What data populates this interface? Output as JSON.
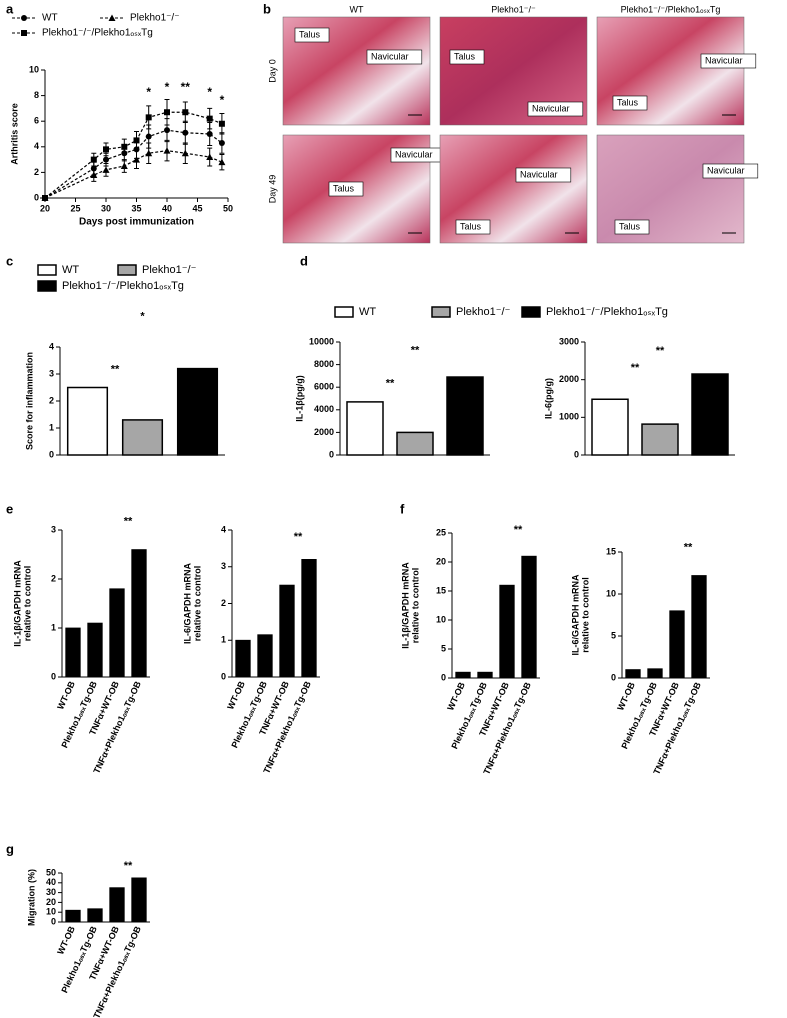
{
  "panel_labels": [
    "a",
    "b",
    "c",
    "d",
    "e",
    "f",
    "g"
  ],
  "histology": {
    "columns": [
      "WT",
      "Plekho1⁻/⁻",
      "Plekho1⁻/⁻/Plekho1ₒₛₓTg"
    ],
    "rows": [
      "Day 0",
      "Day 49"
    ],
    "labels": [
      [
        [
          "Talus",
          "Navicular"
        ],
        [
          "Talus",
          "Navicular"
        ],
        [
          "Navicular",
          "Talus"
        ]
      ],
      [
        [
          "Navicular",
          "Talus"
        ],
        [
          "Navicular",
          "Talus"
        ],
        [
          "Navicular",
          "Talus"
        ]
      ]
    ]
  },
  "chart_data": [
    {
      "type": "line",
      "xlabel": "Days post immunization",
      "ylabel": [
        "Arthritis score"
      ],
      "x": [
        20,
        28,
        30,
        33,
        35,
        37,
        40,
        43,
        47,
        49
      ],
      "xlim": [
        20,
        50
      ],
      "xticks": [
        20,
        25,
        30,
        35,
        40,
        45,
        50
      ],
      "ylim": [
        0,
        10
      ],
      "yticks": [
        0,
        2,
        4,
        6,
        8,
        10
      ],
      "series": [
        {
          "name": "WT",
          "marker": "circle",
          "color": "#000000",
          "values": [
            0,
            2.3,
            3,
            3.5,
            3.8,
            4.8,
            5.3,
            5.1,
            5.0,
            4.3
          ],
          "errors": [
            0,
            0.5,
            0.5,
            0.6,
            0.7,
            0.9,
            0.9,
            0.9,
            0.9,
            0.8
          ]
        },
        {
          "name": "Plekho1⁻/⁻",
          "marker": "triangle",
          "color": "#000000",
          "values": [
            0,
            1.8,
            2.2,
            2.5,
            3.0,
            3.5,
            3.7,
            3.5,
            3.2,
            2.8
          ],
          "errors": [
            0,
            0.5,
            0.5,
            0.5,
            0.7,
            0.8,
            0.8,
            0.8,
            0.7,
            0.6
          ]
        },
        {
          "name": "Plekho1⁻/⁻/Plekho1ₒₛₓTg",
          "marker": "square",
          "color": "#000000",
          "values": [
            0,
            3.0,
            3.8,
            4.0,
            4.5,
            6.3,
            6.7,
            6.7,
            6.2,
            5.8
          ],
          "errors": [
            0,
            0.5,
            0.5,
            0.6,
            0.7,
            0.9,
            1.0,
            0.8,
            0.8,
            0.8
          ]
        }
      ],
      "annotations": [
        {
          "x": 37,
          "y": 8.2,
          "text": "*"
        },
        {
          "x": 40,
          "y": 8.6,
          "text": "*"
        },
        {
          "x": 43,
          "y": 8.6,
          "text": "**"
        },
        {
          "x": 47,
          "y": 8.2,
          "text": "*"
        },
        {
          "x": 49,
          "y": 7.6,
          "text": "*"
        }
      ]
    },
    {
      "type": "bar",
      "ylabel": [
        "Score for inflammation"
      ],
      "legend": [
        "WT",
        "Plekho1⁻/⁻",
        "Plekho1⁻/⁻/Plekho1ₒₛₓTg"
      ],
      "colors": [
        "#ffffff",
        "#a6a6a6",
        "#000000"
      ],
      "values": [
        2.5,
        1.3,
        3.2
      ],
      "errors": [
        0.25,
        0.35,
        0.55
      ],
      "ylim": [
        0,
        4
      ],
      "yticks": [
        0,
        1,
        2,
        3,
        4
      ],
      "brackets": [
        {
          "from": 0,
          "to": 1,
          "y": 2.95,
          "text": "**"
        },
        {
          "from": 0,
          "to": 2,
          "y": 4.9,
          "text": "*"
        }
      ]
    },
    {
      "type": "bar",
      "ylabel": [
        "IL-1β(pg/g)"
      ],
      "legend": [
        "WT",
        "Plekho1⁻/⁻",
        "Plekho1⁻/⁻/Plekho1ₒₛₓTg"
      ],
      "colors": [
        "#ffffff",
        "#a6a6a6",
        "#000000"
      ],
      "values": [
        4700,
        2000,
        6900
      ],
      "errors": [
        800,
        550,
        800
      ],
      "ylim": [
        0,
        10000
      ],
      "yticks": [
        0,
        2000,
        4000,
        6000,
        8000,
        10000
      ],
      "brackets": [
        {
          "from": 0,
          "to": 1,
          "y": 5800,
          "text": "**"
        },
        {
          "from": 0,
          "to": 2,
          "y": 8700,
          "text": "**"
        }
      ]
    },
    {
      "type": "bar",
      "ylabel": [
        "IL-6(pg/g)"
      ],
      "colors": [
        "#ffffff",
        "#a6a6a6",
        "#000000"
      ],
      "values": [
        1480,
        820,
        2150
      ],
      "errors": [
        220,
        180,
        350
      ],
      "ylim": [
        0,
        3000
      ],
      "yticks": [
        0,
        1000,
        2000,
        3000
      ],
      "brackets": [
        {
          "from": 0,
          "to": 1,
          "y": 2150,
          "text": "**"
        },
        {
          "from": 0,
          "to": 2,
          "y": 2600,
          "text": "**"
        }
      ]
    },
    {
      "type": "bar",
      "ylabel": [
        "IL-1β/GAPDH mRNA",
        "relative to control"
      ],
      "color": "#000000",
      "categories": [
        "WT-OB",
        "Plekho1ₒₛₓTg-OB",
        "TNFα+WT-OB",
        "TNFα+Plekho1ₒₛₓTg-OB"
      ],
      "values": [
        1.0,
        1.1,
        1.8,
        2.6
      ],
      "errors": [
        0.06,
        0.12,
        0.12,
        0.25
      ],
      "ylim": [
        0,
        3
      ],
      "yticks": [
        0,
        1,
        2,
        3
      ],
      "brackets": [
        {
          "from": 2,
          "to": 3,
          "y": 3.05,
          "text": "**"
        }
      ]
    },
    {
      "type": "bar",
      "ylabel": [
        "IL-6/GAPDH mRNA",
        "relative to control"
      ],
      "color": "#000000",
      "categories": [
        "WT-OB",
        "Plekho1ₒₛₓTg-OB",
        "TNFα+WT-OB",
        "TNFα+Plekho1ₒₛₓTg-OB"
      ],
      "values": [
        1.0,
        1.15,
        2.5,
        3.2
      ],
      "errors": [
        0.02,
        0.1,
        0.25,
        0.2
      ],
      "ylim": [
        0,
        4
      ],
      "yticks": [
        0,
        1,
        2,
        3,
        4
      ],
      "brackets": [
        {
          "from": 2,
          "to": 3,
          "y": 3.65,
          "text": "**"
        }
      ]
    },
    {
      "type": "bar",
      "ylabel": [
        "IL-1β/GAPDH mRNA",
        "relative to control"
      ],
      "color": "#000000",
      "categories": [
        "WT-OB",
        "Plekho1ₒₛₓTg-OB",
        "TNFα+WT-OB",
        "TNFα+Plekho1ₒₛₓTg-OB"
      ],
      "values": [
        1.0,
        1.0,
        16,
        21
      ],
      "errors": [
        0.2,
        0.1,
        1.3,
        2.2
      ],
      "ylim": [
        0,
        25
      ],
      "yticks": [
        0,
        5,
        10,
        15,
        20,
        25
      ],
      "brackets": [
        {
          "from": 2,
          "to": 3,
          "y": 24.5,
          "text": "**"
        }
      ]
    },
    {
      "type": "bar",
      "ylabel": [
        "IL-6/GAPDH mRNA",
        "relative to control"
      ],
      "color": "#000000",
      "categories": [
        "WT-OB",
        "Plekho1ₒₛₓTg-OB",
        "TNFα+WT-OB",
        "TNFα+Plekho1ₒₛₓTg-OB"
      ],
      "values": [
        1.0,
        1.1,
        8,
        12.2
      ],
      "errors": [
        0.05,
        0.05,
        1.3,
        1.6
      ],
      "ylim": [
        0,
        15
      ],
      "yticks": [
        0,
        5,
        10,
        15
      ],
      "brackets": [
        {
          "from": 2,
          "to": 3,
          "y": 14.8,
          "text": "**"
        }
      ]
    },
    {
      "type": "bar",
      "ylabel": [
        "Migration (%)"
      ],
      "color": "#000000",
      "categories": [
        "WT-OB",
        "Plekho1ₒₛₓTg-OB",
        "TNFα+WT-OB",
        "TNFα+Plekho1ₒₛₓTg-OB"
      ],
      "values": [
        12,
        13.5,
        35,
        45
      ],
      "errors": [
        1,
        2.5,
        2.5,
        2
      ],
      "ylim": [
        0,
        50
      ],
      "yticks": [
        0,
        10,
        20,
        30,
        40,
        50
      ],
      "brackets": [
        {
          "from": 2,
          "to": 3,
          "y": 51,
          "text": "**"
        }
      ]
    }
  ]
}
